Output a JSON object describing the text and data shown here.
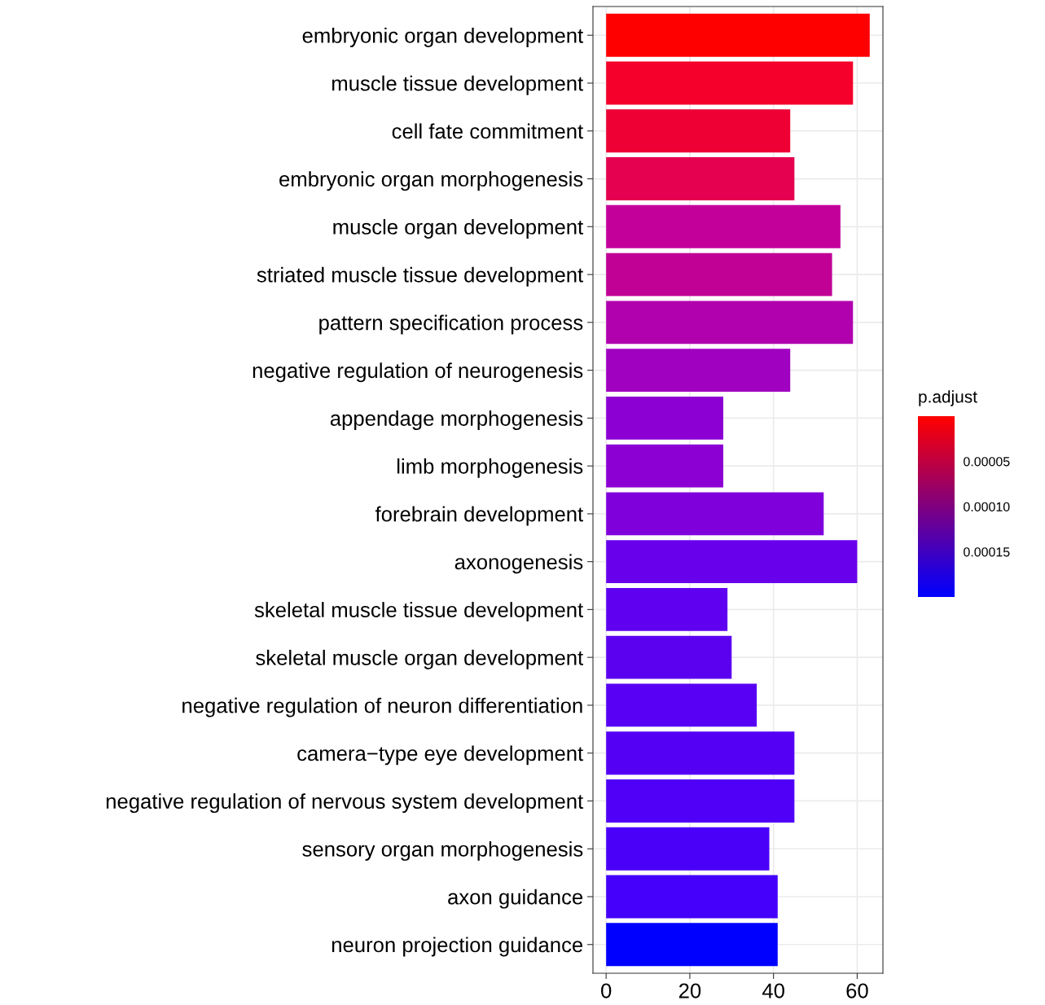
{
  "chart_data": {
    "type": "bar",
    "orientation": "horizontal",
    "categories": [
      "embryonic organ development",
      "muscle tissue development",
      "cell fate commitment",
      "embryonic organ morphogenesis",
      "muscle organ development",
      "striated muscle tissue development",
      "pattern specification process",
      "negative regulation of neurogenesis",
      "appendage morphogenesis",
      "limb morphogenesis",
      "forebrain development",
      "axonogenesis",
      "skeletal muscle tissue development",
      "skeletal muscle organ development",
      "negative regulation of neuron differentiation",
      "camera−type eye development",
      "negative regulation of nervous system development",
      "sensory organ morphogenesis",
      "axon guidance",
      "neuron projection guidance"
    ],
    "values": [
      63,
      59,
      44,
      45,
      56,
      54,
      59,
      44,
      28,
      28,
      52,
      60,
      29,
      30,
      36,
      45,
      45,
      39,
      41,
      41
    ],
    "colors": [
      "#ff0000",
      "#f5002a",
      "#ee0035",
      "#e50050",
      "#c4009a",
      "#c10095",
      "#b100ae",
      "#a000c0",
      "#8c00d4",
      "#8c00d4",
      "#8000dc",
      "#6800ec",
      "#6000f0",
      "#5c00f0",
      "#5800f4",
      "#5400f4",
      "#5000f6",
      "#4a00f8",
      "#4400fa",
      "#0000ff"
    ],
    "xlim": [
      -3.15,
      66.15
    ],
    "xticks": [
      0,
      20,
      40,
      60
    ],
    "grid": true,
    "clabel": "p.adjust",
    "clim": [
      0.0002,
      0.0
    ],
    "cticks": [
      {
        "value": 5e-05,
        "label": "0.00005"
      },
      {
        "value": 0.0001,
        "label": "0.00010"
      },
      {
        "value": 0.00015,
        "label": "0.00015"
      }
    ]
  }
}
